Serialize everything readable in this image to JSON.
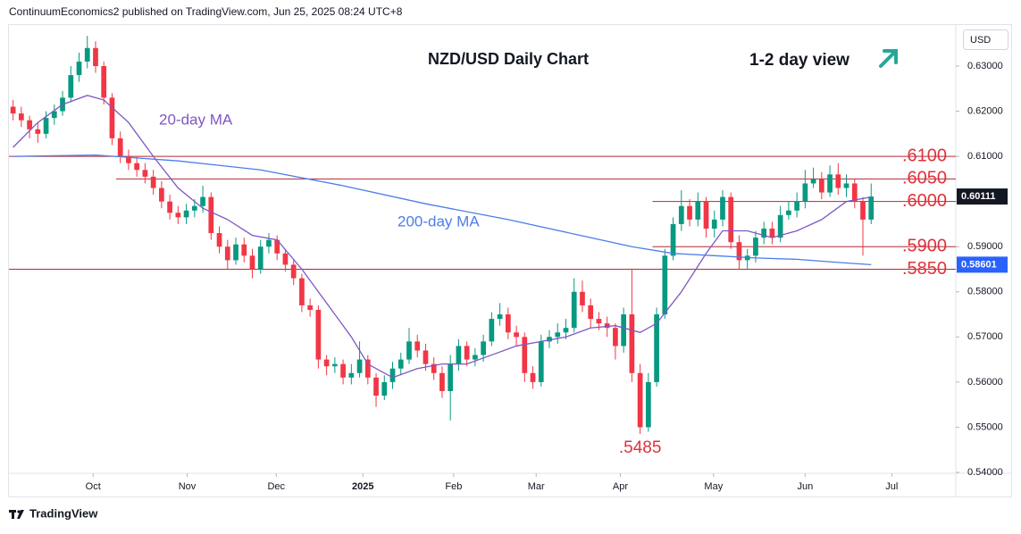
{
  "header": "ContinuumEconomics2 published on TradingView.com, Jun 25, 2025 08:24 UTC+8",
  "footer": "TradingView",
  "chart_data": {
    "type": "candlestick",
    "title": "NZD/USD Daily Chart",
    "subtitle": "1-2 day view",
    "currency": "USD",
    "up_color": "#089981",
    "down_color": "#f23645",
    "open": [
      0.621,
      0.6195,
      0.618,
      0.616,
      0.615,
      0.6185,
      0.62,
      0.623,
      0.628,
      0.631,
      0.634,
      0.63,
      0.623,
      0.614,
      0.61,
      0.6085,
      0.607,
      0.6055,
      0.603,
      0.6,
      0.5975,
      0.5965,
      0.598,
      0.599,
      0.601,
      0.593,
      0.59,
      0.587,
      0.5905,
      0.588,
      0.585,
      0.59,
      0.5915,
      0.5885,
      0.586,
      0.583,
      0.577,
      0.576,
      0.565,
      0.5635,
      0.564,
      0.561,
      0.562,
      0.565,
      0.561,
      0.557,
      0.56,
      0.563,
      0.565,
      0.569,
      0.567,
      0.564,
      0.562,
      0.558,
      0.564,
      0.568,
      0.565,
      0.566,
      0.569,
      0.574,
      0.575,
      0.571,
      0.57,
      0.562,
      0.56,
      0.569,
      0.57,
      0.571,
      0.572,
      0.58,
      0.577,
      0.574,
      0.573,
      0.572,
      0.568,
      0.575,
      0.562,
      0.55,
      0.56,
      0.575,
      0.588,
      0.595,
      0.599,
      0.596,
      0.6,
      0.594,
      0.596,
      0.601,
      0.591,
      0.587,
      0.588,
      0.592,
      0.594,
      0.592,
      0.597,
      0.598,
      0.6,
      0.604,
      0.605,
      0.602,
      0.606,
      0.603,
      0.604,
      0.6,
      0.596
    ],
    "high": [
      0.6225,
      0.621,
      0.619,
      0.6175,
      0.62,
      0.6215,
      0.6245,
      0.63,
      0.633,
      0.6367,
      0.6355,
      0.631,
      0.624,
      0.6155,
      0.6115,
      0.61,
      0.6085,
      0.607,
      0.6045,
      0.6015,
      0.599,
      0.5995,
      0.6005,
      0.6035,
      0.602,
      0.5945,
      0.5915,
      0.592,
      0.592,
      0.5895,
      0.5915,
      0.593,
      0.5925,
      0.5895,
      0.587,
      0.584,
      0.5785,
      0.577,
      0.566,
      0.5655,
      0.565,
      0.564,
      0.569,
      0.566,
      0.562,
      0.5615,
      0.5645,
      0.5665,
      0.572,
      0.5705,
      0.5685,
      0.5655,
      0.5635,
      0.566,
      0.5695,
      0.569,
      0.5675,
      0.5705,
      0.5755,
      0.5775,
      0.5765,
      0.5725,
      0.571,
      0.5635,
      0.5705,
      0.5715,
      0.573,
      0.574,
      0.583,
      0.5825,
      0.5785,
      0.5755,
      0.5745,
      0.573,
      0.5765,
      0.585,
      0.564,
      0.562,
      0.5765,
      0.5895,
      0.5965,
      0.6025,
      0.6005,
      0.602,
      0.601,
      0.598,
      0.6025,
      0.602,
      0.5925,
      0.5895,
      0.5935,
      0.5955,
      0.5955,
      0.599,
      0.6,
      0.602,
      0.607,
      0.6075,
      0.6065,
      0.608,
      0.6085,
      0.606,
      0.605,
      0.601,
      0.604
    ],
    "low": [
      0.618,
      0.6165,
      0.614,
      0.613,
      0.614,
      0.617,
      0.619,
      0.622,
      0.6265,
      0.6295,
      0.6285,
      0.6215,
      0.6125,
      0.6085,
      0.607,
      0.6055,
      0.604,
      0.6015,
      0.5985,
      0.596,
      0.595,
      0.595,
      0.5965,
      0.5975,
      0.5915,
      0.5885,
      0.585,
      0.586,
      0.5865,
      0.583,
      0.584,
      0.5885,
      0.587,
      0.5845,
      0.5815,
      0.5755,
      0.5745,
      0.563,
      0.5615,
      0.562,
      0.5595,
      0.5595,
      0.561,
      0.5595,
      0.5545,
      0.556,
      0.5585,
      0.5615,
      0.564,
      0.5655,
      0.5625,
      0.5605,
      0.5565,
      0.5515,
      0.5625,
      0.5635,
      0.5635,
      0.5645,
      0.568,
      0.5725,
      0.5695,
      0.568,
      0.56,
      0.5585,
      0.559,
      0.5675,
      0.5685,
      0.5695,
      0.571,
      0.5755,
      0.572,
      0.5715,
      0.57,
      0.565,
      0.5665,
      0.56,
      0.5485,
      0.549,
      0.559,
      0.574,
      0.587,
      0.5935,
      0.5945,
      0.5945,
      0.592,
      0.592,
      0.5945,
      0.5895,
      0.585,
      0.585,
      0.5865,
      0.5905,
      0.5905,
      0.591,
      0.596,
      0.5965,
      0.5985,
      0.603,
      0.6005,
      0.601,
      0.6015,
      0.601,
      0.5985,
      0.588,
      0.595
    ],
    "close": [
      0.6195,
      0.618,
      0.616,
      0.615,
      0.6185,
      0.62,
      0.623,
      0.628,
      0.631,
      0.634,
      0.63,
      0.623,
      0.614,
      0.61,
      0.6085,
      0.607,
      0.6055,
      0.603,
      0.6,
      0.5975,
      0.5965,
      0.598,
      0.599,
      0.601,
      0.593,
      0.59,
      0.587,
      0.5905,
      0.588,
      0.585,
      0.59,
      0.5915,
      0.5885,
      0.586,
      0.583,
      0.577,
      0.576,
      0.565,
      0.5635,
      0.564,
      0.561,
      0.562,
      0.565,
      0.561,
      0.557,
      0.56,
      0.563,
      0.565,
      0.569,
      0.567,
      0.564,
      0.562,
      0.558,
      0.564,
      0.568,
      0.565,
      0.566,
      0.569,
      0.574,
      0.575,
      0.571,
      0.57,
      0.562,
      0.56,
      0.569,
      0.57,
      0.571,
      0.572,
      0.58,
      0.577,
      0.574,
      0.573,
      0.572,
      0.568,
      0.575,
      0.562,
      0.55,
      0.56,
      0.575,
      0.588,
      0.595,
      0.599,
      0.596,
      0.6,
      0.594,
      0.596,
      0.601,
      0.591,
      0.587,
      0.588,
      0.592,
      0.594,
      0.592,
      0.597,
      0.598,
      0.6,
      0.604,
      0.605,
      0.602,
      0.606,
      0.603,
      0.604,
      0.6,
      0.596,
      0.60111
    ],
    "moving_averages": [
      {
        "name": "20-day MA",
        "color": "#7e57c2",
        "x": [
          0,
          3,
          6,
          9,
          11,
          14,
          17,
          20,
          23,
          26,
          29,
          32,
          35,
          38,
          41,
          43,
          46,
          49,
          52,
          55,
          58,
          61,
          64,
          67,
          70,
          73,
          76,
          78,
          81,
          84,
          86,
          89,
          92,
          95,
          98,
          101,
          104
        ],
        "values": [
          0.612,
          0.6175,
          0.6215,
          0.6235,
          0.6225,
          0.6175,
          0.61,
          0.603,
          0.5985,
          0.596,
          0.5925,
          0.5915,
          0.585,
          0.5775,
          0.57,
          0.564,
          0.561,
          0.563,
          0.564,
          0.564,
          0.566,
          0.568,
          0.569,
          0.57,
          0.572,
          0.5725,
          0.571,
          0.573,
          0.58,
          0.5885,
          0.5935,
          0.5935,
          0.592,
          0.5935,
          0.596,
          0.6,
          0.601
        ]
      },
      {
        "name": "200-day MA",
        "color": "#4a7ee8",
        "x": [
          0,
          10,
          20,
          30,
          40,
          50,
          60,
          70,
          75,
          80,
          85,
          90,
          95,
          100,
          104
        ],
        "values": [
          0.61,
          0.6103,
          0.609,
          0.607,
          0.6035,
          0.5995,
          0.596,
          0.592,
          0.59,
          0.5885,
          0.588,
          0.5875,
          0.5872,
          0.5865,
          0.58601
        ],
        "value_label": "0.58601"
      }
    ],
    "last_label": "0.60111",
    "levels": [
      {
        "value": 0.61,
        "label": ".6100",
        "start": 0
      },
      {
        "value": 0.605,
        "label": ".6050",
        "start": 13
      },
      {
        "value": 0.6,
        "label": ".6000",
        "start": 78
      },
      {
        "value": 0.59,
        "label": ".5900",
        "start": 78
      },
      {
        "value": 0.585,
        "label": ".5850",
        "start": 0
      }
    ],
    "annotations": [
      {
        "label": ".5485",
        "value": 0.5485,
        "x": 76
      }
    ],
    "xlim": [
      0,
      114
    ],
    "xticks": [
      {
        "value": 10.2,
        "label": "Oct"
      },
      {
        "value": 21.6,
        "label": "Nov"
      },
      {
        "value": 32.4,
        "label": "Dec"
      },
      {
        "value": 42.9,
        "label": "2025"
      },
      {
        "value": 53.9,
        "label": "Feb"
      },
      {
        "value": 63.9,
        "label": "Mar"
      },
      {
        "value": 74.1,
        "label": "Apr"
      },
      {
        "value": 85.4,
        "label": "May"
      },
      {
        "value": 96.5,
        "label": "Jun"
      },
      {
        "value": 107,
        "label": "Jul"
      }
    ],
    "ylim": [
      0.5398,
      0.6391
    ],
    "yticks": [
      {
        "value": 0.54,
        "label": "0.54000"
      },
      {
        "value": 0.55,
        "label": "0.55000"
      },
      {
        "value": 0.56,
        "label": "0.56000"
      },
      {
        "value": 0.57,
        "label": "0.57000"
      },
      {
        "value": 0.58,
        "label": "0.58000"
      },
      {
        "value": 0.59,
        "label": "0.59000"
      },
      {
        "value": 0.6,
        "label": "0.60000"
      },
      {
        "value": 0.61,
        "label": "0.61000"
      },
      {
        "value": 0.62,
        "label": "0.62000"
      },
      {
        "value": 0.63,
        "label": "0.63000"
      }
    ],
    "grid": false
  }
}
